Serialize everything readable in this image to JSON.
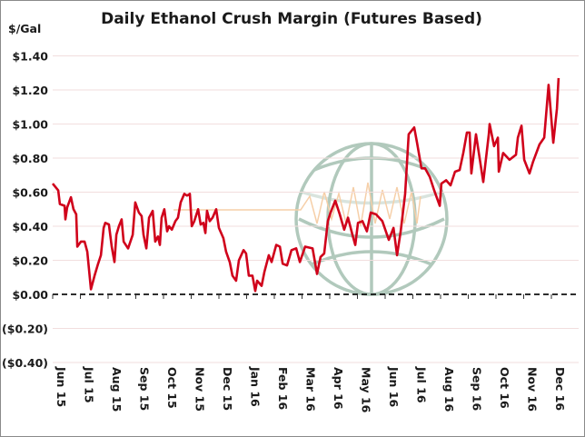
{
  "chart_data": {
    "type": "line",
    "title": "Daily Ethanol Crush Margin (Futures Based)",
    "ylabel": "$/Gal",
    "xlabel": "",
    "ylim": [
      -0.4,
      1.4
    ],
    "yticks": [
      1.4,
      1.2,
      1.0,
      0.8,
      0.6,
      0.4,
      0.2,
      0.0,
      -0.2,
      -0.4
    ],
    "ytick_labels": [
      "$1.40",
      "$1.20",
      "$1.00",
      "$0.80",
      "$0.60",
      "$0.40",
      "$0.20",
      "$0.00",
      "($0.20)",
      "($0.40)"
    ],
    "xtick_labels": [
      "Jun 15",
      "Jul 15",
      "Aug 15",
      "Sep 15",
      "Oct 15",
      "Nov 15",
      "Dec 15",
      "Jan 16",
      "Feb 16",
      "Mar 16",
      "Apr 16",
      "May 16",
      "Jun 16",
      "Jul 16",
      "Aug 16",
      "Sep 16",
      "Oct 16",
      "Nov 16",
      "Dec 16"
    ],
    "x_units": "months since Jun 15",
    "grid": true,
    "zero_line": "dashed",
    "series": [
      {
        "name": "Crush Margin",
        "color": "#d0021b",
        "points": [
          [
            0,
            0.65
          ],
          [
            0.2,
            0.61
          ],
          [
            0.26,
            0.53
          ],
          [
            0.43,
            0.52
          ],
          [
            0.46,
            0.44
          ],
          [
            0.52,
            0.51
          ],
          [
            0.66,
            0.57
          ],
          [
            0.75,
            0.5
          ],
          [
            0.85,
            0.47
          ],
          [
            0.89,
            0.28
          ],
          [
            1.02,
            0.31
          ],
          [
            1.15,
            0.31
          ],
          [
            1.25,
            0.25
          ],
          [
            1.38,
            0.03
          ],
          [
            1.51,
            0.11
          ],
          [
            1.64,
            0.18
          ],
          [
            1.74,
            0.23
          ],
          [
            1.84,
            0.39
          ],
          [
            1.9,
            0.42
          ],
          [
            2.03,
            0.41
          ],
          [
            2.13,
            0.28
          ],
          [
            2.23,
            0.19
          ],
          [
            2.3,
            0.35
          ],
          [
            2.39,
            0.4
          ],
          [
            2.49,
            0.44
          ],
          [
            2.56,
            0.31
          ],
          [
            2.72,
            0.27
          ],
          [
            2.89,
            0.35
          ],
          [
            2.98,
            0.54
          ],
          [
            3.11,
            0.48
          ],
          [
            3.21,
            0.46
          ],
          [
            3.28,
            0.35
          ],
          [
            3.38,
            0.27
          ],
          [
            3.48,
            0.45
          ],
          [
            3.61,
            0.49
          ],
          [
            3.7,
            0.31
          ],
          [
            3.8,
            0.34
          ],
          [
            3.87,
            0.29
          ],
          [
            3.93,
            0.45
          ],
          [
            4.03,
            0.5
          ],
          [
            4.13,
            0.37
          ],
          [
            4.2,
            0.4
          ],
          [
            4.3,
            0.38
          ],
          [
            4.43,
            0.43
          ],
          [
            4.52,
            0.45
          ],
          [
            4.62,
            0.54
          ],
          [
            4.75,
            0.59
          ],
          [
            4.85,
            0.58
          ],
          [
            4.95,
            0.59
          ],
          [
            5.02,
            0.4
          ],
          [
            5.11,
            0.43
          ],
          [
            5.25,
            0.5
          ],
          [
            5.34,
            0.41
          ],
          [
            5.44,
            0.42
          ],
          [
            5.51,
            0.36
          ],
          [
            5.57,
            0.49
          ],
          [
            5.67,
            0.43
          ],
          [
            5.77,
            0.45
          ],
          [
            5.9,
            0.5
          ],
          [
            6.0,
            0.39
          ],
          [
            6.16,
            0.33
          ],
          [
            6.26,
            0.25
          ],
          [
            6.39,
            0.19
          ],
          [
            6.49,
            0.11
          ],
          [
            6.62,
            0.08
          ],
          [
            6.72,
            0.2
          ],
          [
            6.89,
            0.26
          ],
          [
            6.98,
            0.24
          ],
          [
            7.08,
            0.11
          ],
          [
            7.21,
            0.11
          ],
          [
            7.31,
            0.02
          ],
          [
            7.38,
            0.08
          ],
          [
            7.54,
            0.05
          ],
          [
            7.64,
            0.13
          ],
          [
            7.8,
            0.23
          ],
          [
            7.9,
            0.19
          ],
          [
            8.07,
            0.29
          ],
          [
            8.2,
            0.28
          ],
          [
            8.3,
            0.18
          ],
          [
            8.46,
            0.17
          ],
          [
            8.62,
            0.26
          ],
          [
            8.79,
            0.27
          ],
          [
            8.92,
            0.19
          ],
          [
            9.11,
            0.28
          ],
          [
            9.38,
            0.27
          ],
          [
            9.54,
            0.12
          ],
          [
            9.67,
            0.22
          ],
          [
            9.8,
            0.24
          ],
          [
            9.93,
            0.43
          ],
          [
            10.03,
            0.48
          ],
          [
            10.2,
            0.55
          ],
          [
            10.36,
            0.47
          ],
          [
            10.52,
            0.38
          ],
          [
            10.66,
            0.45
          ],
          [
            10.82,
            0.35
          ],
          [
            10.92,
            0.29
          ],
          [
            11.02,
            0.42
          ],
          [
            11.18,
            0.43
          ],
          [
            11.34,
            0.37
          ],
          [
            11.48,
            0.48
          ],
          [
            11.67,
            0.47
          ],
          [
            11.9,
            0.43
          ],
          [
            12.13,
            0.32
          ],
          [
            12.3,
            0.39
          ],
          [
            12.43,
            0.23
          ],
          [
            12.56,
            0.37
          ],
          [
            12.72,
            0.59
          ],
          [
            12.85,
            0.94
          ],
          [
            13.05,
            0.98
          ],
          [
            13.15,
            0.89
          ],
          [
            13.31,
            0.74
          ],
          [
            13.44,
            0.74
          ],
          [
            13.61,
            0.69
          ],
          [
            13.77,
            0.61
          ],
          [
            13.97,
            0.52
          ],
          [
            14.03,
            0.65
          ],
          [
            14.2,
            0.67
          ],
          [
            14.36,
            0.64
          ],
          [
            14.52,
            0.72
          ],
          [
            14.69,
            0.73
          ],
          [
            14.82,
            0.83
          ],
          [
            14.95,
            0.95
          ],
          [
            15.05,
            0.95
          ],
          [
            15.11,
            0.71
          ],
          [
            15.28,
            0.94
          ],
          [
            15.54,
            0.66
          ],
          [
            15.74,
            0.94
          ],
          [
            15.77,
            1.0
          ],
          [
            15.93,
            0.87
          ],
          [
            16.07,
            0.92
          ],
          [
            16.1,
            0.72
          ],
          [
            16.26,
            0.83
          ],
          [
            16.49,
            0.79
          ],
          [
            16.72,
            0.82
          ],
          [
            16.79,
            0.92
          ],
          [
            16.92,
            0.99
          ],
          [
            17.02,
            0.79
          ],
          [
            17.21,
            0.71
          ],
          [
            17.34,
            0.78
          ],
          [
            17.57,
            0.88
          ],
          [
            17.74,
            0.92
          ],
          [
            17.9,
            1.23
          ],
          [
            18.07,
            0.89
          ],
          [
            18.2,
            1.09
          ],
          [
            18.26,
            1.27
          ]
        ]
      }
    ]
  }
}
